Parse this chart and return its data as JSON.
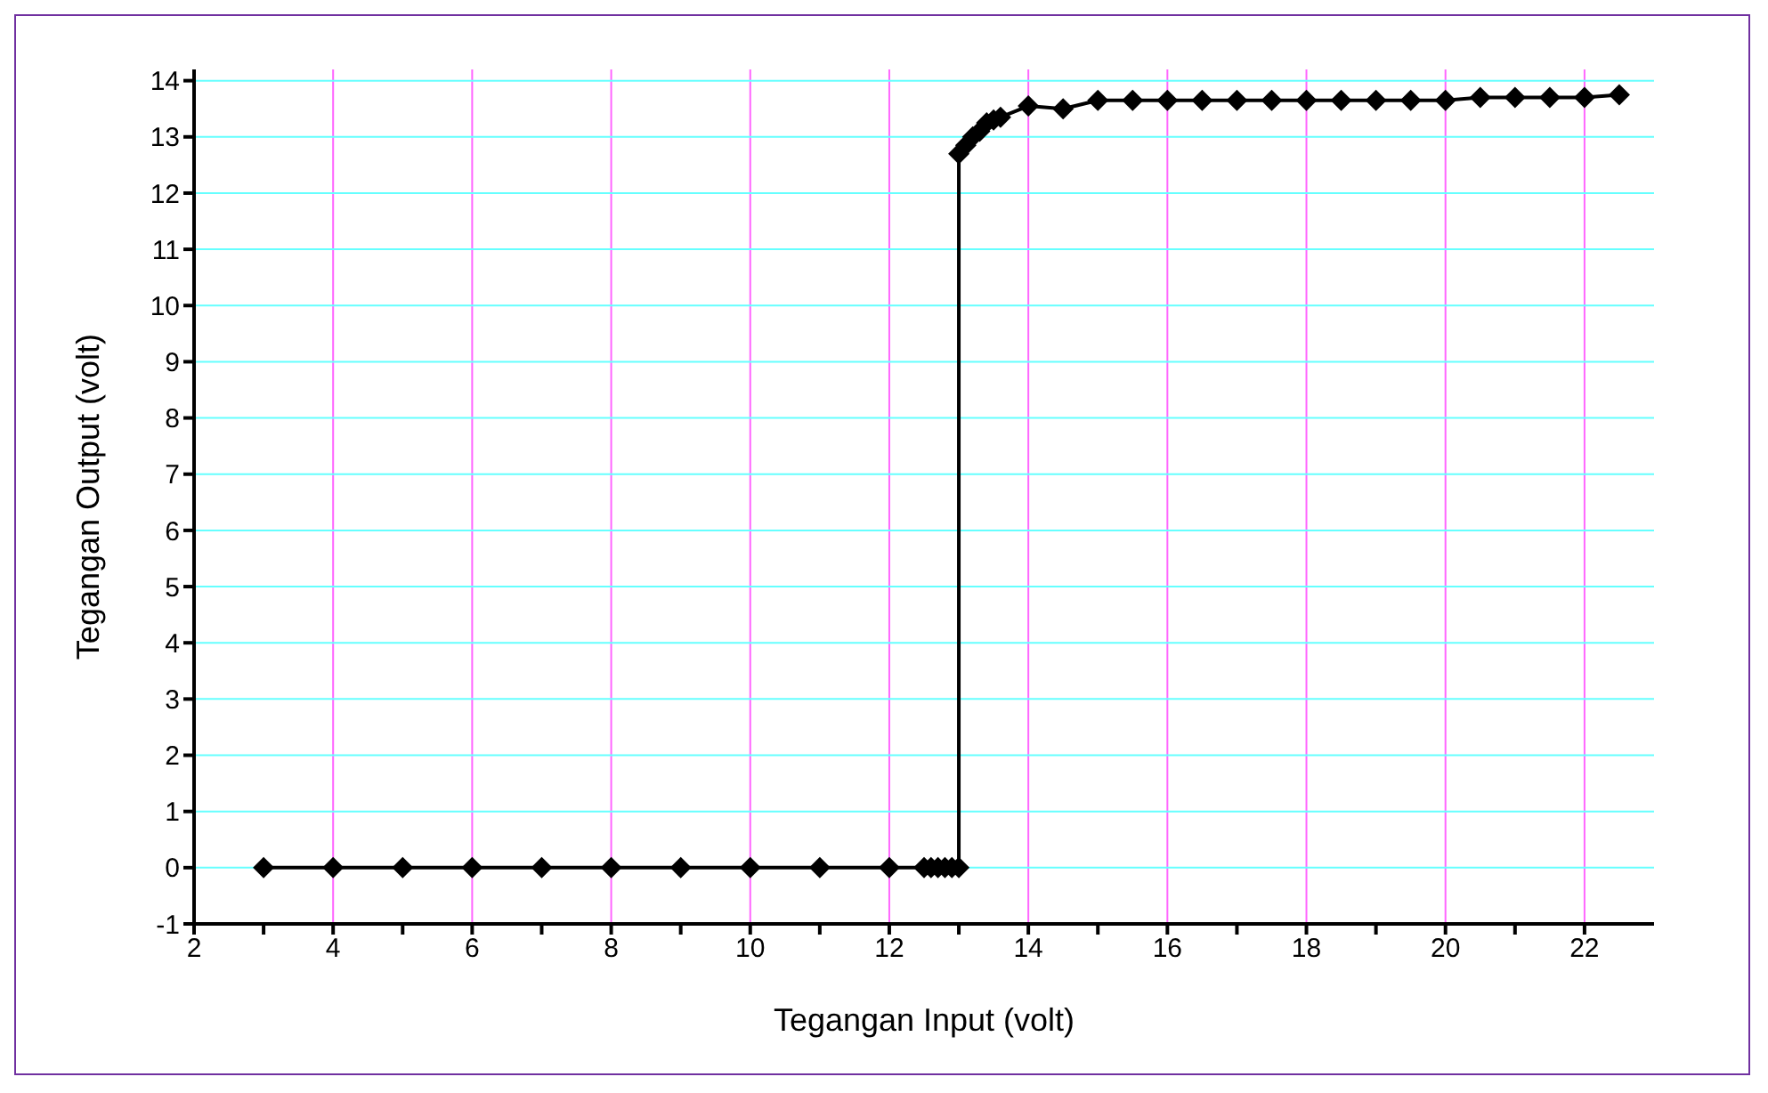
{
  "chart_data": {
    "type": "line",
    "xlabel": "Tegangan Input (volt)",
    "ylabel": "Tegangan Output (volt)",
    "x": [
      3,
      4,
      5,
      6,
      7,
      8,
      9,
      10,
      11,
      12,
      12.5,
      12.6,
      12.7,
      12.8,
      12.9,
      13,
      13,
      13.1,
      13.2,
      13.3,
      13.4,
      13.5,
      13.6,
      14,
      14.5,
      15,
      15.5,
      16,
      16.5,
      17,
      17.5,
      18,
      18.5,
      19,
      19.5,
      20,
      20.5,
      21,
      21.5,
      22,
      22.5
    ],
    "series": [
      {
        "color": "#000000",
        "values": [
          0,
          0,
          0,
          0,
          0,
          0,
          0,
          0,
          0,
          0,
          0,
          0,
          0,
          0,
          0,
          0,
          12.7,
          12.85,
          13,
          13.1,
          13.25,
          13.3,
          13.35,
          13.55,
          13.5,
          13.65,
          13.65,
          13.65,
          13.65,
          13.65,
          13.65,
          13.65,
          13.65,
          13.65,
          13.65,
          13.65,
          13.7,
          13.7,
          13.7,
          13.7,
          13.75
        ]
      }
    ],
    "xlim": [
      2,
      23
    ],
    "ylim": [
      -1,
      14.2
    ],
    "xticks": [
      2,
      {
        "value": 3,
        "label": null
      },
      4,
      {
        "value": 5,
        "label": null
      },
      6,
      {
        "value": 7,
        "label": null
      },
      8,
      {
        "value": 9,
        "label": null
      },
      10,
      {
        "value": 11,
        "label": null
      },
      12,
      {
        "value": 13,
        "label": null
      },
      14,
      {
        "value": 15,
        "label": null
      },
      16,
      {
        "value": 17,
        "label": null
      },
      18,
      {
        "value": 19,
        "label": null
      },
      20,
      {
        "value": 21,
        "label": null
      },
      22
    ],
    "yticks": [
      -1,
      0,
      1,
      2,
      3,
      4,
      5,
      6,
      7,
      8,
      9,
      10,
      11,
      12,
      13,
      14
    ],
    "grid": true,
    "legend": false,
    "marker": "diamond",
    "line_style": "solid"
  }
}
